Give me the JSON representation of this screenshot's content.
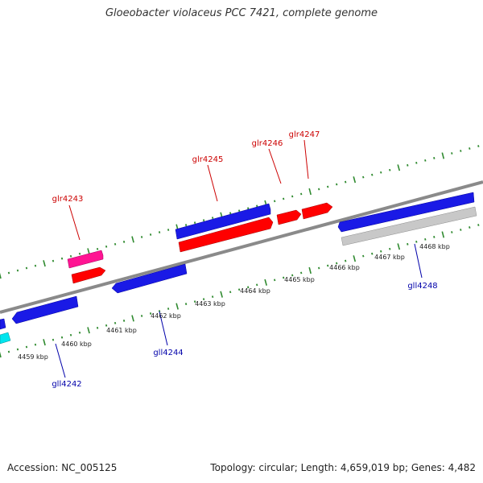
{
  "title": "Gloeobacter violaceus PCC 7421, complete genome",
  "footer": {
    "accession": "Accession: NC_005125",
    "summary": "Topology: circular; Length: 4,659,019 bp; Genes: 4,482"
  },
  "colors": {
    "background": "#ffffff",
    "backbone": "#8a8a8a",
    "tick": "#2f8a2f",
    "forward_label": "#cc0000",
    "reverse_label": "#0000aa",
    "kbp_label": "#222222"
  },
  "kbp_labels": [
    "4459 kbp",
    "4460 kbp",
    "4461 kbp",
    "4462 kbp",
    "4463 kbp",
    "4464 kbp",
    "4465 kbp",
    "4466 kbp",
    "4467 kbp",
    "4468 kbp"
  ],
  "forward_genes": [
    {
      "label": "glr4243",
      "color": "#ff1493"
    },
    {
      "label": "glr4245",
      "color": "#ff0000"
    },
    {
      "label": "glr4246",
      "color": "#ff0000"
    },
    {
      "label": "glr4247",
      "color": "#ff0000"
    }
  ],
  "reverse_genes": [
    {
      "label": "gll4242",
      "color": "#0000ff"
    },
    {
      "label": "gll4244",
      "color": "#0000ff"
    },
    {
      "label": "gll4248",
      "color": "#0000ff"
    }
  ]
}
